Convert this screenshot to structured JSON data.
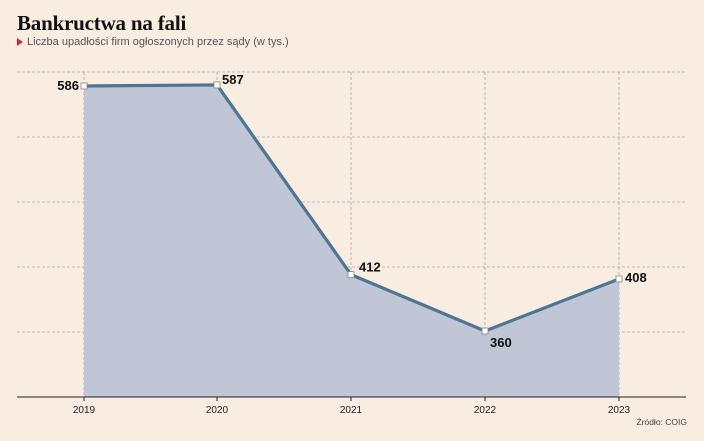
{
  "header": {
    "title": "Bankructwa  na fali",
    "subtitle": "Liczba upadłości firm ogłoszonych przez sądy (w tys.)"
  },
  "footer": {
    "source": "Źródło: COIG"
  },
  "colors": {
    "background": "#f9ece0",
    "line": "#4e7593",
    "area": "#c0c6d6",
    "grid": "#a9a9a9",
    "marker_accent": "#d9262b"
  },
  "chart_data": {
    "type": "area",
    "categories": [
      "2019",
      "2020",
      "2021",
      "2022",
      "2023"
    ],
    "values": [
      586,
      587,
      412,
      360,
      408
    ],
    "data_labels": [
      "586",
      "587",
      "412",
      "360",
      "408"
    ],
    "title": "Bankructwa  na fali",
    "subtitle": "Liczba upadłości firm ogłoszonych przez sądy (w tys.)",
    "xlabel": "",
    "ylabel": "",
    "ylim": [
      250,
      600
    ],
    "grid": true
  }
}
